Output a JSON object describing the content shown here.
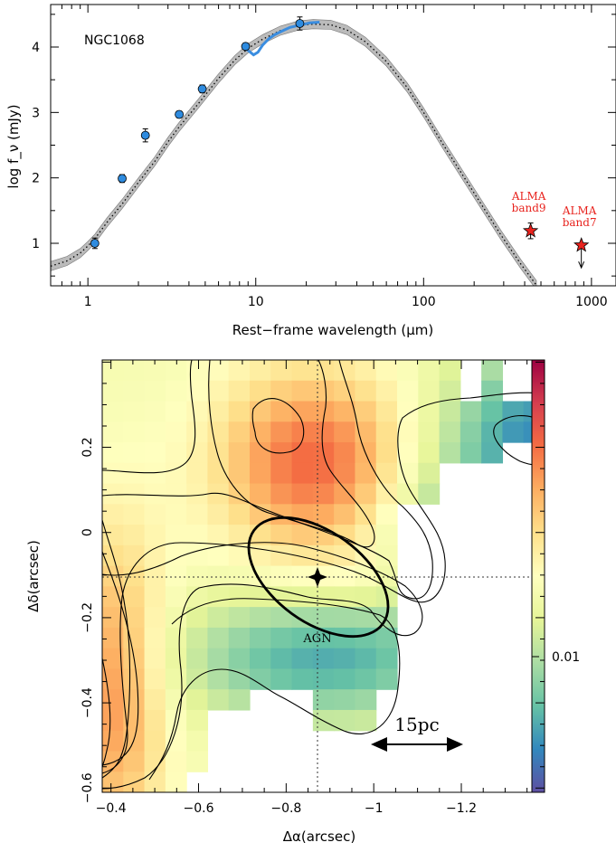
{
  "chart_data": [
    {
      "type": "scatter",
      "panel": "top",
      "label": "NGC1068",
      "xlabel": "Rest−frame wavelength (μm)",
      "ylabel": "log f_ν (mJy)",
      "xscale": "log",
      "xlim": [
        0.6,
        1400
      ],
      "ylim": [
        0.35,
        4.65
      ],
      "xticks": [
        1,
        10,
        100,
        1000
      ],
      "xtick_labels": [
        "1",
        "10",
        "100",
        "1000"
      ],
      "yticks": [
        1,
        2,
        3,
        4
      ],
      "ytick_labels": [
        "1",
        "2",
        "3",
        "4"
      ],
      "photometry": [
        {
          "x": 1.1,
          "y": 1.0,
          "err": 0.08
        },
        {
          "x": 1.6,
          "y": 1.99,
          "err": 0.06
        },
        {
          "x": 2.2,
          "y": 2.65,
          "err": 0.1
        },
        {
          "x": 3.5,
          "y": 2.97,
          "err": 0.05
        },
        {
          "x": 4.8,
          "y": 3.36,
          "err": 0.06
        },
        {
          "x": 8.7,
          "y": 4.01,
          "err": 0.05
        },
        {
          "x": 18.3,
          "y": 4.36,
          "err": 0.1
        }
      ],
      "model_median": [
        [
          0.6,
          0.65
        ],
        [
          0.75,
          0.73
        ],
        [
          0.9,
          0.85
        ],
        [
          1.0,
          0.96
        ],
        [
          1.1,
          1.07
        ],
        [
          1.3,
          1.32
        ],
        [
          1.6,
          1.6
        ],
        [
          2.0,
          1.93
        ],
        [
          2.5,
          2.25
        ],
        [
          3.0,
          2.55
        ],
        [
          3.5,
          2.78
        ],
        [
          4.5,
          3.12
        ],
        [
          6,
          3.52
        ],
        [
          7.5,
          3.8
        ],
        [
          9,
          3.98
        ],
        [
          11,
          4.12
        ],
        [
          14,
          4.25
        ],
        [
          18,
          4.33
        ],
        [
          22,
          4.35
        ],
        [
          28,
          4.34
        ],
        [
          35,
          4.26
        ],
        [
          45,
          4.08
        ],
        [
          60,
          3.78
        ],
        [
          80,
          3.38
        ],
        [
          100,
          3.0
        ],
        [
          130,
          2.52
        ],
        [
          170,
          2.05
        ],
        [
          220,
          1.6
        ],
        [
          290,
          1.12
        ],
        [
          380,
          0.68
        ],
        [
          470,
          0.36
        ]
      ],
      "band_halfwidth": 0.07,
      "irs_spectrum": [
        [
          8.3,
          4.0
        ],
        [
          9.0,
          3.95
        ],
        [
          9.7,
          3.88
        ],
        [
          10.3,
          3.92
        ],
        [
          11,
          4.03
        ],
        [
          12,
          4.13
        ],
        [
          13,
          4.19
        ],
        [
          14.5,
          4.25
        ],
        [
          16,
          4.3
        ],
        [
          18,
          4.33
        ],
        [
          21,
          4.37
        ],
        [
          24,
          4.38
        ]
      ],
      "alma_points": [
        {
          "x": 434,
          "y": 1.19,
          "err": 0.12,
          "label_lines": [
            "ALMA",
            "band9"
          ]
        },
        {
          "x": 870,
          "y": 0.97,
          "upper_limit": true,
          "label_lines": [
            "ALMA",
            "band7"
          ]
        }
      ],
      "colors": {
        "points": "#2e8bdf",
        "band": "#bbbbbb",
        "irs": "#3a8de0",
        "alma": "#e8231e"
      }
    },
    {
      "type": "heatmap",
      "panel": "bottom",
      "xlabel": "Δα(arcsec)",
      "ylabel": "Δδ(arcsec)",
      "xlim": [
        -0.38,
        -1.39
      ],
      "ylim": [
        -0.61,
        0.405
      ],
      "xticks": [
        -0.4,
        -0.6,
        -0.8,
        -1,
        -1.2
      ],
      "xtick_labels": [
        "−0.4",
        "−0.6",
        "−0.8",
        "−1",
        "−1.2"
      ],
      "yticks": [
        0.2,
        0,
        -0.2,
        -0.4,
        -0.6
      ],
      "ytick_labels": [
        "0.2",
        "0",
        "−0.2",
        "−0.4",
        "−0.6"
      ],
      "colorbar": {
        "tick_label": "0.01",
        "tick_value": 0.01,
        "colors": [
          "#5e4fa2",
          "#3288bd",
          "#66c2a5",
          "#abdda4",
          "#e6f598",
          "#ffffbf",
          "#fee08b",
          "#fdae61",
          "#f46d43",
          "#d53e4f",
          "#9e0142"
        ]
      },
      "agn": {
        "label": "AGN",
        "x": -0.875,
        "y": -0.11
      },
      "beam": {
        "x": -0.875,
        "y": -0.12,
        "major_arcsec": 0.35,
        "minor_arcsec": 0.2
      },
      "scale_bar": {
        "label": "15pc",
        "from": -1.01,
        "to": -1.22,
        "y": -0.545
      }
    }
  ]
}
